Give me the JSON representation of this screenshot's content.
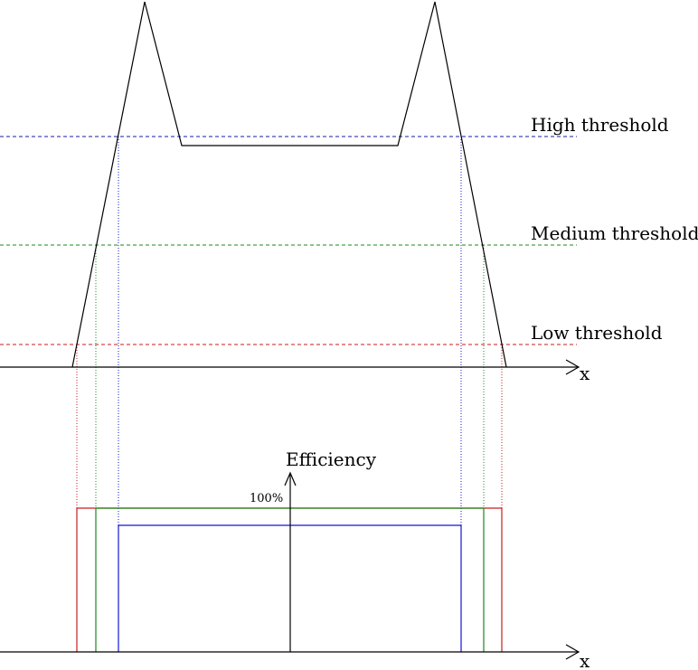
{
  "thresholds": {
    "high": {
      "label": "High threshold",
      "color": "#1a1aa6"
    },
    "medium": {
      "label": "Medium threshold",
      "color": "#1a8a1a"
    },
    "low": {
      "label": "Low threshold",
      "color": "#c81e1e"
    }
  },
  "top_axis": {
    "label": "x"
  },
  "bottom_axis": {
    "label": "x"
  },
  "efficiency_axis": {
    "label": "Efficiency",
    "tick_label": "100%"
  },
  "signal_color": "#000000",
  "efficiency_colors": {
    "low": "#c81e1e",
    "medium": "#1a8a1a",
    "high": "#1414d4"
  }
}
